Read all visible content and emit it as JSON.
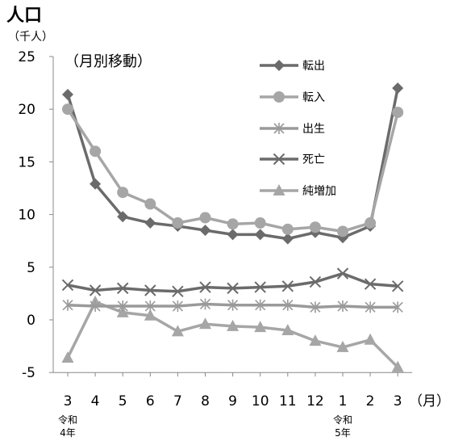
{
  "title": "人口",
  "y_unit": "（千人）",
  "subtitle": "（月別移動）",
  "x_unit": "（月）",
  "year_marks": [
    {
      "index": 0,
      "era": "令和",
      "year": "4年"
    },
    {
      "index": 10,
      "era": "令和",
      "year": "5年"
    }
  ],
  "colors": {
    "転出": "#6b6b6b",
    "転入": "#a6a6a6",
    "出生": "#9a9a9a",
    "死亡": "#6b6b6b",
    "純増加": "#a6a6a6",
    "axis": "#888888"
  },
  "chart_data": {
    "type": "line",
    "categories": [
      "3",
      "4",
      "5",
      "6",
      "7",
      "8",
      "9",
      "10",
      "11",
      "12",
      "1",
      "2",
      "3"
    ],
    "ylim": [
      -5,
      25
    ],
    "yticks": [
      -5,
      0,
      5,
      10,
      15,
      20,
      25
    ],
    "grid": false,
    "legend_position": "top-right",
    "series": [
      {
        "name": "転出",
        "marker": "diamond",
        "values": [
          21.4,
          12.9,
          9.8,
          9.2,
          8.9,
          8.5,
          8.1,
          8.1,
          7.7,
          8.3,
          7.8,
          8.9,
          22.0
        ]
      },
      {
        "name": "転入",
        "marker": "circle",
        "values": [
          20.0,
          16.0,
          12.1,
          11.0,
          9.2,
          9.7,
          9.1,
          9.2,
          8.6,
          8.8,
          8.4,
          9.2,
          19.7
        ]
      },
      {
        "name": "出生",
        "marker": "asterisk",
        "values": [
          1.4,
          1.3,
          1.3,
          1.3,
          1.3,
          1.5,
          1.4,
          1.4,
          1.4,
          1.2,
          1.3,
          1.2,
          1.2
        ]
      },
      {
        "name": "死亡",
        "marker": "x",
        "values": [
          3.3,
          2.8,
          3.0,
          2.8,
          2.7,
          3.1,
          3.0,
          3.1,
          3.2,
          3.6,
          4.4,
          3.4,
          3.2
        ]
      },
      {
        "name": "純増加",
        "marker": "triangle",
        "values": [
          -3.6,
          1.7,
          0.7,
          0.4,
          -1.1,
          -0.4,
          -0.6,
          -0.7,
          -1.0,
          -2.0,
          -2.6,
          -1.9,
          -4.5
        ]
      }
    ]
  }
}
